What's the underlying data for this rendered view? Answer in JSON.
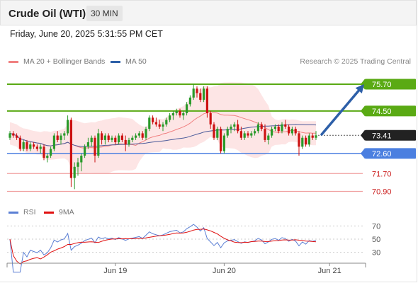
{
  "header": {
    "title": "Crude Oil (WTI)",
    "interval": "30 MIN"
  },
  "datetime": "Friday, June 20, 2025 5:31:55 PM CET",
  "copyright": "Research © 2025 Trading Central",
  "colors": {
    "resistance": "#5aaa14",
    "support": "#4b7fe0",
    "target_line": "#f0a0a0",
    "bollinger_fill": "#fde2e2",
    "ma20": "#f08080",
    "ma50": "#4a5a9a",
    "candle_up": "#2a9a2a",
    "candle_down": "#cc1111",
    "arrow": "#2d5fa8",
    "current_bg": "#222222",
    "rsi": "#5b7fd4",
    "rsi_ma": "#e01010"
  },
  "chart_data": [
    {
      "type": "candlestick",
      "title": "",
      "legend": [
        {
          "label": "MA 20 + Bollinger Bands",
          "color": "#f08080"
        },
        {
          "label": "MA 50",
          "color": "#4a5a9a"
        }
      ],
      "x_ticks": [
        {
          "label": "Jun 19",
          "index": 31
        },
        {
          "label": "Jun 20",
          "index": 63
        },
        {
          "label": "Jun 21",
          "index": 94
        }
      ],
      "ylim": [
        70.6,
        76.3
      ],
      "current_price": "73.41",
      "levels": [
        {
          "label": "75.70",
          "value": 75.7,
          "kind": "resistance"
        },
        {
          "label": "74.50",
          "value": 74.5,
          "kind": "resistance"
        },
        {
          "label": "72.60",
          "value": 72.6,
          "kind": "support"
        },
        {
          "label": "71.70",
          "value": 71.7,
          "kind": "target"
        },
        {
          "label": "70.90",
          "value": 70.9,
          "kind": "target"
        }
      ],
      "arrow": {
        "from": 73.45,
        "to": 75.7
      },
      "candles": [
        [
          73.3,
          73.6,
          73.2,
          73.5
        ],
        [
          73.5,
          73.6,
          73.3,
          73.4
        ],
        [
          73.4,
          73.5,
          73.2,
          73.3
        ],
        [
          73.3,
          73.4,
          72.7,
          72.8
        ],
        [
          72.8,
          73.2,
          72.7,
          73.1
        ],
        [
          73.1,
          73.2,
          72.7,
          72.8
        ],
        [
          72.8,
          73.1,
          72.7,
          73.0
        ],
        [
          73.0,
          73.1,
          72.8,
          72.9
        ],
        [
          72.9,
          73.0,
          72.7,
          72.8
        ],
        [
          72.8,
          73.0,
          72.6,
          72.9
        ],
        [
          72.9,
          73.0,
          72.3,
          72.4
        ],
        [
          72.4,
          72.6,
          72.2,
          72.5
        ],
        [
          72.5,
          72.9,
          72.4,
          72.8
        ],
        [
          72.8,
          73.5,
          72.7,
          73.4
        ],
        [
          73.4,
          73.6,
          73.1,
          73.2
        ],
        [
          73.2,
          73.5,
          73.0,
          73.4
        ],
        [
          73.4,
          73.6,
          73.2,
          73.5
        ],
        [
          73.5,
          74.3,
          73.4,
          74.1
        ],
        [
          74.1,
          74.2,
          71.1,
          71.5
        ],
        [
          71.5,
          72.2,
          71.0,
          72.0
        ],
        [
          72.0,
          72.4,
          71.6,
          72.2
        ],
        [
          72.2,
          72.6,
          71.8,
          72.5
        ],
        [
          72.5,
          73.0,
          72.4,
          72.9
        ],
        [
          72.9,
          73.3,
          72.8,
          73.1
        ],
        [
          73.1,
          73.4,
          72.9,
          73.3
        ],
        [
          73.3,
          73.4,
          72.2,
          72.5
        ],
        [
          72.5,
          73.7,
          72.4,
          73.5
        ],
        [
          73.5,
          73.6,
          73.0,
          73.2
        ],
        [
          73.2,
          73.5,
          73.0,
          73.4
        ],
        [
          73.4,
          73.5,
          73.1,
          73.2
        ],
        [
          73.2,
          73.4,
          73.1,
          73.3
        ],
        [
          73.3,
          73.4,
          73.0,
          73.1
        ],
        [
          73.1,
          73.5,
          73.0,
          73.4
        ],
        [
          73.4,
          73.5,
          73.1,
          73.2
        ],
        [
          73.2,
          73.4,
          72.7,
          73.0
        ],
        [
          73.0,
          73.3,
          72.9,
          73.2
        ],
        [
          73.2,
          73.4,
          73.1,
          73.3
        ],
        [
          73.3,
          73.5,
          73.2,
          73.4
        ],
        [
          73.4,
          73.6,
          73.3,
          73.5
        ],
        [
          73.5,
          73.6,
          73.2,
          73.3
        ],
        [
          73.3,
          73.8,
          73.2,
          73.7
        ],
        [
          73.7,
          74.3,
          73.6,
          74.2
        ],
        [
          74.2,
          74.3,
          73.9,
          74.0
        ],
        [
          74.0,
          74.2,
          73.8,
          73.9
        ],
        [
          73.9,
          74.1,
          73.7,
          73.8
        ],
        [
          73.8,
          74.0,
          73.6,
          73.9
        ],
        [
          73.9,
          74.2,
          73.8,
          74.1
        ],
        [
          74.1,
          74.4,
          74.0,
          74.3
        ],
        [
          74.3,
          74.5,
          74.1,
          74.4
        ],
        [
          74.4,
          74.6,
          74.3,
          74.5
        ],
        [
          74.5,
          74.6,
          74.2,
          74.3
        ],
        [
          74.3,
          74.5,
          74.1,
          74.4
        ],
        [
          74.4,
          74.9,
          74.3,
          74.8
        ],
        [
          74.8,
          75.2,
          74.7,
          75.1
        ],
        [
          75.1,
          75.7,
          75.0,
          75.5
        ],
        [
          75.5,
          75.6,
          75.1,
          75.3
        ],
        [
          75.3,
          75.5,
          74.9,
          75.0
        ],
        [
          75.0,
          75.6,
          74.9,
          75.5
        ],
        [
          75.5,
          75.6,
          74.2,
          74.4
        ],
        [
          74.4,
          74.5,
          73.7,
          73.9
        ],
        [
          73.9,
          74.0,
          73.2,
          73.3
        ],
        [
          73.3,
          73.8,
          73.2,
          73.7
        ],
        [
          73.7,
          73.8,
          72.6,
          72.7
        ],
        [
          72.7,
          73.5,
          72.6,
          73.4
        ],
        [
          73.4,
          73.8,
          73.3,
          73.7
        ],
        [
          73.7,
          73.9,
          73.5,
          73.8
        ],
        [
          73.8,
          74.0,
          73.6,
          73.9
        ],
        [
          73.9,
          74.1,
          73.5,
          73.6
        ],
        [
          73.6,
          73.8,
          73.2,
          73.3
        ],
        [
          73.3,
          73.6,
          73.2,
          73.5
        ],
        [
          73.5,
          73.6,
          73.3,
          73.4
        ],
        [
          73.4,
          73.6,
          73.3,
          73.5
        ],
        [
          73.5,
          73.7,
          73.4,
          73.6
        ],
        [
          73.6,
          74.0,
          73.5,
          73.9
        ],
        [
          73.9,
          74.0,
          73.6,
          73.7
        ],
        [
          73.7,
          73.9,
          73.1,
          73.2
        ],
        [
          73.2,
          73.5,
          73.0,
          73.4
        ],
        [
          73.4,
          73.8,
          73.3,
          73.7
        ],
        [
          73.7,
          73.9,
          73.6,
          73.8
        ],
        [
          73.8,
          73.9,
          73.5,
          73.6
        ],
        [
          73.6,
          74.0,
          73.5,
          73.9
        ],
        [
          73.9,
          74.1,
          73.7,
          73.8
        ],
        [
          73.8,
          73.9,
          73.4,
          73.5
        ],
        [
          73.5,
          73.8,
          73.4,
          73.7
        ],
        [
          73.7,
          73.8,
          73.4,
          73.5
        ],
        [
          73.5,
          73.6,
          72.5,
          72.9
        ],
        [
          72.9,
          73.4,
          72.8,
          73.3
        ],
        [
          73.3,
          73.4,
          72.9,
          73.0
        ],
        [
          73.0,
          73.5,
          72.9,
          73.4
        ],
        [
          73.4,
          73.5,
          73.2,
          73.3
        ],
        [
          73.3,
          73.6,
          73.2,
          73.41
        ]
      ]
    },
    {
      "type": "line",
      "title": "",
      "legend": [
        {
          "label": "RSI",
          "color": "#5b7fd4"
        },
        {
          "label": "9MA",
          "color": "#e01010"
        }
      ],
      "ylim": [
        20,
        80
      ],
      "y_ticks": [
        {
          "label": "70",
          "value": 70
        },
        {
          "label": "50",
          "value": 50
        },
        {
          "label": "30",
          "value": 30
        }
      ]
    }
  ]
}
